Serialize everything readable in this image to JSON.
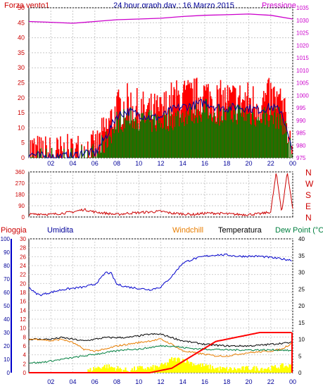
{
  "chart_data": [
    {
      "type": "line",
      "title": "24 hour graph day : 16 Marzo 2015",
      "left_axis_label": "Forza vento1",
      "right_axis_label": "Pressione",
      "x_ticks": [
        "02",
        "04",
        "06",
        "08",
        "10",
        "12",
        "14",
        "16",
        "18",
        "20",
        "22",
        "00"
      ],
      "y_left_ticks": [
        0,
        5,
        10,
        15,
        20,
        25,
        30,
        35,
        40,
        45,
        50
      ],
      "y_right_ticks": [
        975,
        980,
        985,
        990,
        995,
        1000,
        1005,
        1010,
        1015,
        1020,
        1025,
        1030,
        1035
      ],
      "ylim_left": [
        0,
        50
      ],
      "ylim_right": [
        975,
        1035
      ],
      "grid": true,
      "colors": {
        "gust": "#ff0000",
        "wind": "#008000",
        "avg": "#000099",
        "pressure": "#cc00cc",
        "axis_left": "#cc0000",
        "axis_right": "#cc00cc",
        "title": "#000099"
      },
      "series": [
        {
          "name": "Pressione",
          "axis": "right",
          "x": [
            0,
            2,
            4,
            6,
            8,
            10,
            12,
            14,
            16,
            18,
            20,
            22,
            24
          ],
          "values": [
            1029.5,
            1029.2,
            1028.8,
            1029.5,
            1030.2,
            1030.5,
            1030.8,
            1031.5,
            1032.0,
            1032.2,
            1032.5,
            1032.0,
            1030.5
          ]
        },
        {
          "axis": "left",
          "x": [
            0,
            1,
            2,
            3,
            4,
            5,
            6,
            7,
            8,
            9,
            10,
            11,
            12,
            13,
            14,
            15,
            16,
            17,
            18,
            19,
            20,
            21,
            22,
            23,
            24
          ],
          "values": [
            3,
            1,
            1,
            1,
            1,
            3,
            2,
            9,
            16,
            18,
            16,
            15,
            15,
            19,
            20,
            20,
            21,
            19,
            19,
            19,
            19,
            18,
            20,
            18,
            1
          ]
        },
        {
          "axis": "left",
          "x": [
            0,
            1,
            2,
            3,
            4,
            5,
            6,
            7,
            8,
            9,
            10,
            11,
            12,
            13,
            14,
            15,
            16,
            17,
            18,
            19,
            20,
            21,
            22,
            23,
            24
          ],
          "values": [
            0,
            0,
            0,
            0,
            0,
            1,
            1,
            5,
            12,
            13,
            13,
            12,
            12,
            13,
            14,
            15,
            16,
            15,
            14,
            15,
            14,
            14,
            14,
            13,
            1
          ]
        }
      ]
    },
    {
      "type": "line",
      "y_ticks": [
        0,
        90,
        180,
        270,
        360
      ],
      "ylim": [
        0,
        360
      ],
      "compass_labels": [
        "N",
        "W",
        "S",
        "E",
        "N"
      ],
      "x": [
        0,
        1,
        2,
        3,
        4,
        5,
        6,
        7,
        8,
        9,
        10,
        11,
        12,
        13,
        14,
        15,
        16,
        17,
        18,
        19,
        20,
        21,
        22,
        22.5,
        23,
        23.5,
        24
      ],
      "values": [
        20,
        25,
        20,
        30,
        40,
        60,
        40,
        30,
        20,
        30,
        35,
        40,
        45,
        30,
        25,
        20,
        30,
        30,
        25,
        20,
        20,
        25,
        40,
        360,
        30,
        360,
        70
      ]
    },
    {
      "type": "line",
      "legend": [
        "Pioggia",
        "Umidita",
        "Windchill",
        "Temperatura",
        "Dew Point (°C"
      ],
      "x_ticks": [
        "02",
        "04",
        "06",
        "08",
        "10",
        "12",
        "14",
        "16",
        "18",
        "20",
        "22",
        "00"
      ],
      "y_humidity_ticks": [
        0,
        10,
        20,
        30,
        40,
        50,
        60,
        70,
        80,
        90,
        100
      ],
      "y_rain_ticks": [
        0,
        2,
        4,
        6,
        8,
        10,
        12,
        14,
        16,
        18,
        20,
        22,
        24,
        26,
        28,
        30
      ],
      "y_temp_ticks": [
        0,
        5,
        10,
        15,
        20,
        25,
        30,
        35,
        40
      ],
      "ylim_humidity": [
        0,
        100
      ],
      "ylim_rain": [
        0,
        30
      ],
      "ylim_temp": [
        0,
        40
      ],
      "colors": {
        "rain": "#ff0000",
        "humidity": "#0000cc",
        "windchill": "#e87d00",
        "temperature": "#000000",
        "dewpoint": "#007f3f",
        "rain_fill": "#ffff00"
      },
      "series": [
        {
          "name": "Umidita",
          "axis": "humidity",
          "x": [
            0,
            0.5,
            1,
            2,
            3,
            4,
            5,
            6,
            6.5,
            7,
            7.5,
            8,
            9,
            10,
            11,
            12,
            13,
            14,
            15,
            16,
            17,
            18,
            19,
            20,
            21,
            22,
            23,
            24
          ],
          "values": [
            64,
            60,
            58,
            60,
            62,
            63,
            64,
            66,
            70,
            75,
            74,
            66,
            64,
            63,
            62,
            64,
            72,
            82,
            85,
            87,
            88,
            88,
            87,
            87,
            87,
            86,
            85,
            84
          ]
        },
        {
          "name": "Temperatura",
          "axis": "temp",
          "x": [
            0,
            1,
            2,
            3,
            4,
            5,
            6,
            7,
            8,
            9,
            10,
            11,
            12,
            13,
            14,
            15,
            16,
            17,
            18,
            19,
            20,
            21,
            22,
            23,
            24
          ],
          "values": [
            10,
            10,
            10,
            10.5,
            10,
            9.5,
            10,
            10.5,
            10.5,
            10.5,
            11,
            11.5,
            11.5,
            10.5,
            9.5,
            9,
            8.5,
            8.2,
            8,
            8,
            8,
            8.2,
            8.5,
            8.8,
            9
          ]
        },
        {
          "name": "Windchill",
          "axis": "temp",
          "x": [
            0,
            1,
            2,
            3,
            4,
            5,
            6,
            7,
            8,
            9,
            10,
            11,
            12,
            13,
            14,
            15,
            16,
            17,
            18,
            19,
            20,
            21,
            22,
            23,
            24
          ],
          "values": [
            10,
            10,
            9.5,
            10,
            9,
            7,
            6.5,
            7,
            8,
            8.5,
            9,
            9.5,
            10,
            8.5,
            6.5,
            6,
            5.5,
            5,
            5,
            5.5,
            6,
            6.2,
            6.5,
            7,
            9
          ]
        },
        {
          "name": "Dew Point (°C",
          "axis": "temp",
          "x": [
            0,
            1,
            2,
            3,
            4,
            5,
            6,
            7,
            8,
            9,
            10,
            11,
            12,
            13,
            14,
            15,
            16,
            17,
            18,
            19,
            20,
            21,
            22,
            23,
            24
          ],
          "values": [
            3,
            3,
            3.5,
            4,
            4.5,
            5,
            5.5,
            6,
            6.5,
            7,
            7,
            7.5,
            8,
            8,
            7.5,
            7.2,
            7,
            7,
            6.8,
            6.8,
            6.8,
            6.8,
            6.8,
            6.8,
            6.5
          ]
        },
        {
          "name": "Pioggia",
          "axis": "rain",
          "x": [
            0,
            1,
            2,
            3,
            4,
            5,
            6,
            7,
            8,
            9,
            10,
            11,
            12,
            13,
            14,
            15,
            16,
            17,
            18,
            19,
            20,
            21,
            22,
            23,
            24
          ],
          "values": [
            0,
            0,
            0,
            0,
            0,
            0,
            0,
            0,
            0,
            0,
            0,
            0,
            0.5,
            1,
            2.5,
            4,
            5.5,
            7,
            7.5,
            8,
            8.5,
            9,
            9,
            9,
            9
          ]
        }
      ],
      "rain_rate": {
        "x": [
          5,
          6,
          7,
          8,
          9,
          10,
          11,
          12,
          12.5,
          13,
          14,
          15,
          16,
          17,
          18,
          19,
          20,
          21,
          22,
          23,
          24
        ],
        "values": [
          0,
          1,
          1.5,
          1,
          0.5,
          1,
          1,
          1.5,
          2,
          3,
          3,
          2,
          1.5,
          1,
          0.8,
          0.8,
          1,
          1,
          1,
          1.5,
          1.5
        ]
      }
    }
  ]
}
